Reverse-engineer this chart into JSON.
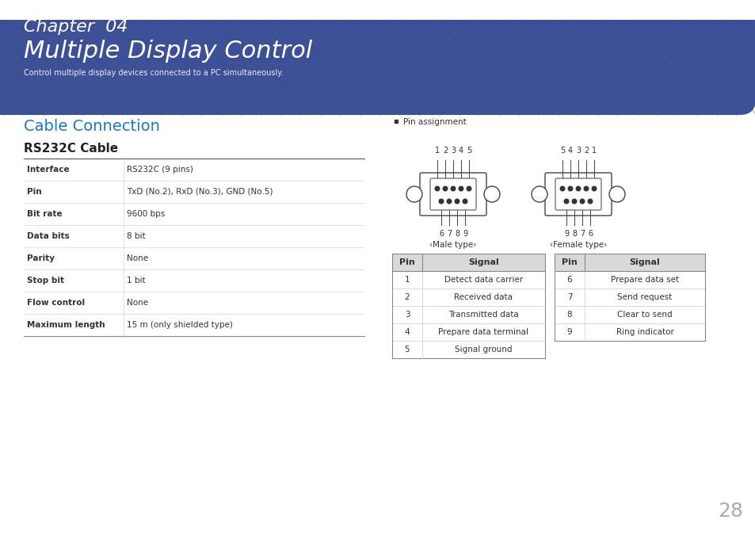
{
  "bg_color": "#ffffff",
  "header_bg": "#3d4f95",
  "header_text_color": "#ffffff",
  "chapter_label": "Chapter  04",
  "chapter_title": "Multiple Display Control",
  "chapter_subtitle": "Control multiple display devices connected to a PC simultaneously.",
  "section1_title": "Cable Connection",
  "section1_color": "#1a7abf",
  "section2_title": "RS232C Cable",
  "section2_color": "#222222",
  "cable_table_rows": [
    [
      "Interface",
      "RS232C (9 pins)"
    ],
    [
      "Pin",
      "TxD (No.2), RxD (No.3), GND (No.5)"
    ],
    [
      "Bit rate",
      "9600 bps"
    ],
    [
      "Data bits",
      "8 bit"
    ],
    [
      "Parity",
      "None"
    ],
    [
      "Stop bit",
      "1 bit"
    ],
    [
      "Flow control",
      "None"
    ],
    [
      "Maximum length",
      "15 m (only shielded type)"
    ]
  ],
  "pin_bullet": "Pin assignment",
  "pin_table_left_headers": [
    "Pin",
    "Signal"
  ],
  "pin_table_left_rows": [
    [
      "1",
      "Detect data carrier"
    ],
    [
      "2",
      "Received data"
    ],
    [
      "3",
      "Transmitted data"
    ],
    [
      "4",
      "Prepare data terminal"
    ],
    [
      "5",
      "Signal ground"
    ]
  ],
  "pin_table_right_headers": [
    "Pin",
    "Signal"
  ],
  "pin_table_right_rows": [
    [
      "6",
      "Prepare data set"
    ],
    [
      "7",
      "Send request"
    ],
    [
      "8",
      "Clear to send"
    ],
    [
      "9",
      "Ring indicator"
    ]
  ],
  "page_number": "28",
  "table_header_bg": "#d9d9d9",
  "text_color_dark": "#333333",
  "text_color_light": "#666666",
  "male_top_labels": [
    "1",
    "2",
    "3",
    "4",
    "5"
  ],
  "male_bot_labels": [
    "6",
    "7",
    "8",
    "9"
  ],
  "female_top_labels": [
    "5",
    "4",
    "3",
    "2",
    "1"
  ],
  "female_bot_labels": [
    "9",
    "8",
    "7",
    "6"
  ]
}
